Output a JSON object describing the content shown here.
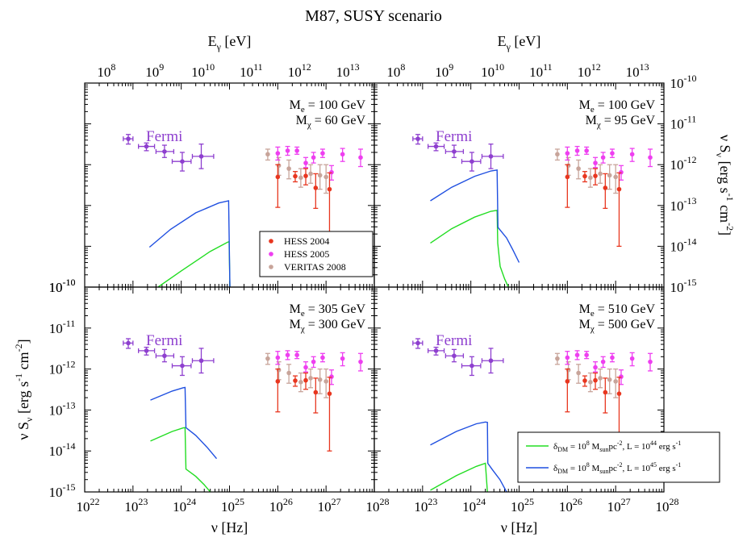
{
  "title": "M87, SUSY scenario",
  "colors": {
    "fermi": "#8e3fcf",
    "hess2004": "#e8361f",
    "hess2005": "#ee3ff0",
    "veritas2008": "#c8a49a",
    "green": "#22dd22",
    "blue": "#1f4fe0"
  },
  "axes": {
    "x_bottom_label": "ν [Hz]",
    "x_top_label": "E",
    "x_top_label_sub": "γ",
    "x_top_label_unit": " [eV]",
    "y_label_left": "ν S",
    "y_label_sub": "ν",
    "y_label_unit": " [erg s",
    "y_label_exp1": "-1",
    "y_label_mid": " cm",
    "y_label_exp2": "-2",
    "y_label_end": "]",
    "nu_log_range": [
      22,
      28
    ],
    "flux_log_range": [
      -15,
      -10
    ],
    "energy_log_offset": 14.383,
    "x_bottom_ticks": [
      {
        "exp": 22,
        "label": "10",
        "sup": "22"
      },
      {
        "exp": 23,
        "label": "10",
        "sup": "23"
      },
      {
        "exp": 24,
        "label": "10",
        "sup": "24"
      },
      {
        "exp": 25,
        "label": "10",
        "sup": "25"
      },
      {
        "exp": 26,
        "label": "10",
        "sup": "26"
      },
      {
        "exp": 27,
        "label": "10",
        "sup": "27"
      },
      {
        "exp": 28,
        "label": "10",
        "sup": "28"
      }
    ],
    "x_top_ticks": [
      {
        "exp": 8,
        "label": "10",
        "sup": "8"
      },
      {
        "exp": 9,
        "label": "10",
        "sup": "9"
      },
      {
        "exp": 10,
        "label": "10",
        "sup": "10"
      },
      {
        "exp": 11,
        "label": "10",
        "sup": "11"
      },
      {
        "exp": 12,
        "label": "10",
        "sup": "12"
      },
      {
        "exp": 13,
        "label": "10",
        "sup": "13"
      }
    ],
    "y_ticks": [
      {
        "exp": -15,
        "label": "10",
        "sup": "-15"
      },
      {
        "exp": -14,
        "label": "10",
        "sup": "-14"
      },
      {
        "exp": -13,
        "label": "10",
        "sup": "-13"
      },
      {
        "exp": -12,
        "label": "10",
        "sup": "-12"
      },
      {
        "exp": -11,
        "label": "10",
        "sup": "-11"
      },
      {
        "exp": -10,
        "label": "10",
        "sup": "-10"
      }
    ]
  },
  "legend_data": {
    "entries": [
      {
        "label": "HESS 2004",
        "color_key": "hess2004"
      },
      {
        "label": "HESS 2005",
        "color_key": "hess2005"
      },
      {
        "label": "VERITAS 2008",
        "color_key": "veritas2008"
      }
    ]
  },
  "legend_model": {
    "entries": [
      {
        "color_key": "green",
        "delta": "δ",
        "delta_sub": "DM",
        "eq": " = 10",
        "exp8": "8",
        "m": " M",
        "msub": "sun",
        "pc": "pc",
        "pcexp": "-2",
        "L": ", L = 10",
        "Lexp": "44",
        "unit": " erg s",
        "unitexp": "-1"
      },
      {
        "color_key": "blue",
        "delta": "δ",
        "delta_sub": "DM",
        "eq": " = 10",
        "exp8": "8",
        "m": " M",
        "msub": "sun",
        "pc": "pc",
        "pcexp": "-2",
        "L": ", L = 10",
        "Lexp": "45",
        "unit": " erg s",
        "unitexp": "-1"
      }
    ]
  },
  "chart_data": {
    "type": "scatter",
    "title": "M87, SUSY scenario",
    "xlabel": "ν [Hz]",
    "x2label": "E_γ [eV]",
    "ylabel": "ν S_ν [erg s^-1 cm^-2]",
    "xscale": "log",
    "yscale": "log",
    "xlim": [
      1e+22,
      1e+28
    ],
    "ylim": [
      1e-15,
      1e-10
    ],
    "observations": {
      "fermi": {
        "label": "Fermi",
        "points": [
          {
            "nu": 8e+22,
            "f": 4.3e-12,
            "nu_lo": 6.3e+22,
            "nu_hi": 1e+23,
            "f_lo": 3.2e-12,
            "f_hi": 5.5e-12
          },
          {
            "nu": 1.9e+23,
            "f": 2.8e-12,
            "nu_lo": 1.3e+23,
            "nu_hi": 2.8e+23,
            "f_lo": 2.2e-12,
            "f_hi": 3.4e-12
          },
          {
            "nu": 4.5e+23,
            "f": 2.1e-12,
            "nu_lo": 3e+23,
            "nu_hi": 7e+23,
            "f_lo": 1.5e-12,
            "f_hi": 3e-12
          },
          {
            "nu": 1.05e+24,
            "f": 1.2e-12,
            "nu_lo": 6.5e+23,
            "nu_hi": 1.6e+24,
            "f_lo": 7e-13,
            "f_hi": 2e-12
          },
          {
            "nu": 2.6e+24,
            "f": 1.6e-12,
            "nu_lo": 1.7e+24,
            "nu_hi": 4.7e+24,
            "f_lo": 8e-13,
            "f_hi": 3.2e-12
          }
        ]
      },
      "hess2004": {
        "label": "HESS 2004",
        "points": [
          {
            "nu": 1e+26,
            "f": 5e-13,
            "f_lo": 9e-14,
            "f_hi": 1e-12
          },
          {
            "nu": 2.3e+26,
            "f": 5.2e-13,
            "f_lo": 3.8e-13,
            "f_hi": 6.8e-13
          },
          {
            "nu": 3.8e+26,
            "f": 5.3e-13,
            "f_lo": 3.2e-13,
            "f_hi": 8e-13
          },
          {
            "nu": 6.1e+26,
            "f": 2.7e-13,
            "f_lo": 8.5e-14,
            "f_hi": 6e-13
          },
          {
            "nu": 1.18e+27,
            "f": 2.5e-13,
            "f_lo": 1e-14,
            "f_hi": 6.3e-13
          }
        ]
      },
      "hess2005": {
        "label": "HESS 2005",
        "points": [
          {
            "nu": 1e+26,
            "f": 1.9e-12,
            "f_lo": 1.3e-12,
            "f_hi": 2.7e-12
          },
          {
            "nu": 1.6e+26,
            "f": 2.2e-12,
            "f_lo": 1.7e-12,
            "f_hi": 2.8e-12
          },
          {
            "nu": 2.5e+26,
            "f": 2.2e-12,
            "f_lo": 1.8e-12,
            "f_hi": 2.7e-12
          },
          {
            "nu": 3.8e+26,
            "f": 1.1e-12,
            "f_lo": 8.5e-13,
            "f_hi": 1.5e-12
          },
          {
            "nu": 5.5e+26,
            "f": 1.5e-12,
            "f_lo": 1.1e-12,
            "f_hi": 2e-12
          },
          {
            "nu": 8.5e+26,
            "f": 1.9e-12,
            "f_lo": 1.5e-12,
            "f_hi": 2.4e-12
          },
          {
            "nu": 1.3e+27,
            "f": 6.5e-13,
            "f_lo": 4.2e-13,
            "f_hi": 9.5e-13
          },
          {
            "nu": 2.2e+27,
            "f": 1.8e-12,
            "f_lo": 1.2e-12,
            "f_hi": 2.5e-12
          },
          {
            "nu": 5.2e+27,
            "f": 1.5e-12,
            "f_lo": 9e-13,
            "f_hi": 2.4e-12
          }
        ]
      },
      "veritas2008": {
        "label": "VERITAS 2008",
        "points": [
          {
            "nu": 6.2e+25,
            "f": 1.8e-12,
            "f_lo": 1.3e-12,
            "f_hi": 2.4e-12
          },
          {
            "nu": 1.05e+26,
            "f": 9.5e-13,
            "f_lo": 5.5e-13,
            "f_hi": 1.5e-12
          },
          {
            "nu": 1.7e+26,
            "f": 8e-13,
            "f_lo": 4.5e-13,
            "f_hi": 1.3e-12
          },
          {
            "nu": 3e+26,
            "f": 4.8e-13,
            "f_lo": 2.8e-13,
            "f_hi": 8e-13
          },
          {
            "nu": 4.8e+26,
            "f": 6e-13,
            "f_lo": 3.5e-13,
            "f_hi": 1e-12
          },
          {
            "nu": 7.5e+26,
            "f": 5.5e-13,
            "f_lo": 2.5e-13,
            "f_hi": 1e-12
          },
          {
            "nu": 1e+27,
            "f": 5e-13,
            "f_lo": 2e-13,
            "f_hi": 1e-12
          }
        ]
      }
    },
    "panels": [
      {
        "name": "top-left",
        "Me": "100 GeV",
        "Mchi": "60 GeV",
        "series": [
          {
            "name": "L=1e44",
            "color_key": "green",
            "points": [
              [
                3.3e+23,
                1e-15
              ],
              [
                1e+24,
                2.5e-15
              ],
              [
                4e+24,
                7.5e-15
              ],
              [
                9e+24,
                1.25e-14
              ],
              [
                9.8e+24,
                1.3e-14
              ],
              [
                1.02e+25,
                1e-15
              ]
            ]
          },
          {
            "name": "L=1e45",
            "color_key": "blue",
            "points": [
              [
                2.2e+23,
                9.5e-15
              ],
              [
                6e+23,
                2.6e-14
              ],
              [
                2e+24,
                6.6e-14
              ],
              [
                6e+24,
                1.15e-13
              ],
              [
                9.6e+24,
                1.3e-13
              ],
              [
                1.02e+25,
                1e-15
              ]
            ]
          }
        ]
      },
      {
        "name": "top-right",
        "Me": "100 GeV",
        "Mchi": "95 GeV",
        "series": [
          {
            "name": "L=1e44",
            "color_key": "green",
            "points": [
              [
                1.45e+23,
                1.2e-14
              ],
              [
                4e+23,
                2.7e-14
              ],
              [
                1.2e+24,
                5.2e-14
              ],
              [
                2.6e+24,
                7.2e-14
              ],
              [
                3.5e+24,
                7.6e-14
              ],
              [
                3.6e+24,
                1.2e-14
              ],
              [
                4.05e+24,
                3.2e-15
              ],
              [
                5e+24,
                1.6e-15
              ],
              [
                6e+24,
                1e-15
              ]
            ]
          },
          {
            "name": "L=1e45",
            "color_key": "blue",
            "points": [
              [
                1.45e+23,
                1.3e-13
              ],
              [
                4e+23,
                2.8e-13
              ],
              [
                1.2e+24,
                5.2e-13
              ],
              [
                2.6e+24,
                7e-13
              ],
              [
                3.5e+24,
                7.4e-13
              ],
              [
                3.65e+24,
                2.9e-14
              ],
              [
                5.5e+24,
                1.6e-14
              ],
              [
                7.5e+24,
                8e-15
              ],
              [
                1e+25,
                4e-15
              ]
            ]
          }
        ]
      },
      {
        "name": "bottom-left",
        "Me": "305 GeV",
        "Mchi": "300 GeV",
        "series": [
          {
            "name": "L=1e44",
            "color_key": "green",
            "points": [
              [
                2.3e+23,
                1.75e-14
              ],
              [
                6.5e+23,
                3e-14
              ],
              [
                1.1e+24,
                3.65e-14
              ],
              [
                1.2e+24,
                3.7e-14
              ],
              [
                1.25e+24,
                3.6e-15
              ],
              [
                2e+24,
                2.4e-15
              ],
              [
                3e+24,
                1.5e-15
              ],
              [
                4e+24,
                1e-15
              ]
            ]
          },
          {
            "name": "L=1e45",
            "color_key": "blue",
            "points": [
              [
                2.3e+23,
                1.75e-13
              ],
              [
                6.5e+23,
                2.9e-13
              ],
              [
                1.1e+24,
                3.5e-13
              ],
              [
                1.2e+24,
                3.55e-13
              ],
              [
                1.25e+24,
                3.7e-14
              ],
              [
                2e+24,
                2.4e-14
              ],
              [
                3.5e+24,
                1.2e-14
              ],
              [
                5.4e+24,
                6.5e-15
              ]
            ]
          }
        ]
      },
      {
        "name": "bottom-right",
        "Me": "510 GeV",
        "Mchi": "500 GeV",
        "series": [
          {
            "name": "L=1e44",
            "color_key": "green",
            "points": [
              [
                1.45e+23,
                1.1e-15
              ],
              [
                5e+23,
                2.5e-15
              ],
              [
                1.3e+24,
                4.2e-15
              ],
              [
                2e+24,
                5e-15
              ],
              [
                2.2e+24,
                1e-15
              ]
            ]
          },
          {
            "name": "L=1e45",
            "color_key": "blue",
            "points": [
              [
                1.45e+23,
                1.4e-14
              ],
              [
                5e+23,
                3e-14
              ],
              [
                1.3e+24,
                4.6e-14
              ],
              [
                2e+24,
                5.1e-14
              ],
              [
                2.2e+24,
                5e-14
              ],
              [
                2.25e+24,
                5e-15
              ],
              [
                2.8e+24,
                3.5e-15
              ],
              [
                4e+24,
                2e-15
              ],
              [
                5.5e+24,
                1e-15
              ]
            ]
          }
        ]
      }
    ]
  }
}
